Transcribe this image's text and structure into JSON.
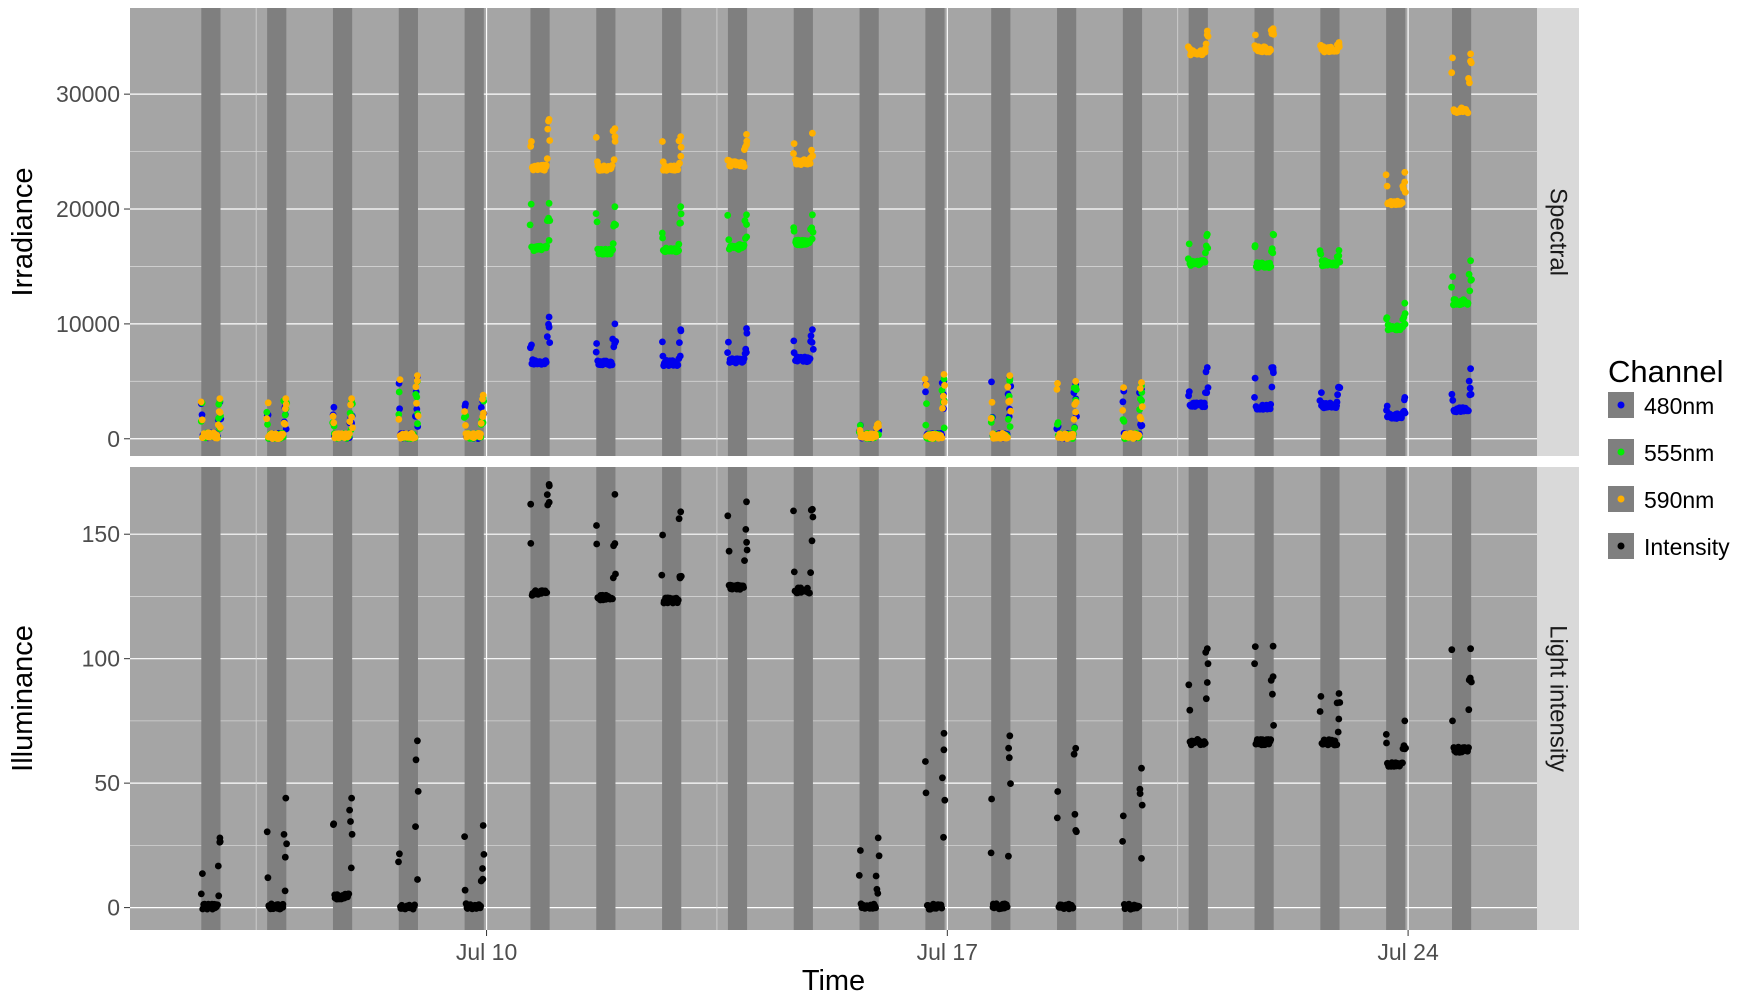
{
  "chart_data": {
    "type": "scatter",
    "xlabel": "Time",
    "x_tick_labels": [
      "Jul 10",
      "Jul 17",
      "Jul 24"
    ],
    "x_tick_dates": [
      "2023-07-10",
      "2023-07-17",
      "2023-07-24"
    ],
    "x_range": [
      "2023-07-04 14:00",
      "2023-07-25 23:00"
    ],
    "dark_periods": [
      [
        "2023-07-05 16:00",
        "2023-07-05 23:00"
      ],
      [
        "2023-07-06 16:00",
        "2023-07-06 23:00"
      ],
      [
        "2023-07-07 16:00",
        "2023-07-07 23:00"
      ],
      [
        "2023-07-08 16:00",
        "2023-07-08 23:00"
      ],
      [
        "2023-07-09 16:00",
        "2023-07-09 23:00"
      ],
      [
        "2023-07-10 16:00",
        "2023-07-10 23:00"
      ],
      [
        "2023-07-11 16:00",
        "2023-07-11 23:00"
      ],
      [
        "2023-07-12 16:00",
        "2023-07-12 23:00"
      ],
      [
        "2023-07-13 16:00",
        "2023-07-13 23:00"
      ],
      [
        "2023-07-14 16:00",
        "2023-07-14 23:00"
      ],
      [
        "2023-07-15 16:00",
        "2023-07-15 23:00"
      ],
      [
        "2023-07-16 16:00",
        "2023-07-16 23:00"
      ],
      [
        "2023-07-17 16:00",
        "2023-07-17 23:00"
      ],
      [
        "2023-07-18 16:00",
        "2023-07-18 23:00"
      ],
      [
        "2023-07-19 16:00",
        "2023-07-19 23:00"
      ],
      [
        "2023-07-20 16:00",
        "2023-07-20 23:00"
      ],
      [
        "2023-07-21 16:00",
        "2023-07-21 23:00"
      ],
      [
        "2023-07-22 16:00",
        "2023-07-22 23:00"
      ],
      [
        "2023-07-23 16:00",
        "2023-07-23 23:00"
      ],
      [
        "2023-07-24 16:00",
        "2023-07-24 23:00"
      ]
    ],
    "legend": {
      "title": "Channel",
      "placement": "right",
      "entries": [
        {
          "label": "480nm",
          "color": "#0000ee"
        },
        {
          "label": "555nm",
          "color": "#00ee00"
        },
        {
          "label": "590nm",
          "color": "#ffb000"
        },
        {
          "label": "Intensity",
          "color": "#000000"
        }
      ]
    },
    "facets": [
      {
        "strip_label": "Spectral",
        "ylabel": "Irradiance",
        "ylim": [
          -1500,
          37500
        ],
        "y_ticks": [
          0,
          10000,
          20000,
          30000
        ],
        "grid": true,
        "series": [
          {
            "name": "480nm",
            "color": "#0000ee",
            "daily": [
              {
                "day": "2023-07-05",
                "base": 200,
                "peak": 3200
              },
              {
                "day": "2023-07-06",
                "base": 150,
                "peak": 3000
              },
              {
                "day": "2023-07-07",
                "base": 150,
                "peak": 3000
              },
              {
                "day": "2023-07-08",
                "base": 150,
                "peak": 5400
              },
              {
                "day": "2023-07-09",
                "base": 150,
                "peak": 3500
              },
              {
                "day": "2023-07-10",
                "base": 6600,
                "peak": 10600
              },
              {
                "day": "2023-07-11",
                "base": 6500,
                "peak": 10000
              },
              {
                "day": "2023-07-12",
                "base": 6500,
                "peak": 9500
              },
              {
                "day": "2023-07-13",
                "base": 6700,
                "peak": 9600
              },
              {
                "day": "2023-07-14",
                "base": 6800,
                "peak": 9500
              },
              {
                "day": "2023-07-15",
                "base": 150,
                "peak": 1300
              },
              {
                "day": "2023-07-16",
                "base": 150,
                "peak": 5000
              },
              {
                "day": "2023-07-17",
                "base": 150,
                "peak": 5300
              },
              {
                "day": "2023-07-18",
                "base": 150,
                "peak": 4700
              },
              {
                "day": "2023-07-19",
                "base": 150,
                "peak": 4300
              },
              {
                "day": "2023-07-20",
                "base": 2800,
                "peak": 6200
              },
              {
                "day": "2023-07-21",
                "base": 2700,
                "peak": 6200
              },
              {
                "day": "2023-07-22",
                "base": 2800,
                "peak": 4500
              },
              {
                "day": "2023-07-23",
                "base": 1900,
                "peak": 3600
              },
              {
                "day": "2023-07-24",
                "base": 2400,
                "peak": 6100
              }
            ]
          },
          {
            "name": "555nm",
            "color": "#00ee00",
            "daily": [
              {
                "day": "2023-07-05",
                "base": 200,
                "peak": 3300
              },
              {
                "day": "2023-07-06",
                "base": 150,
                "peak": 3300
              },
              {
                "day": "2023-07-07",
                "base": 150,
                "peak": 3300
              },
              {
                "day": "2023-07-08",
                "base": 150,
                "peak": 5000
              },
              {
                "day": "2023-07-09",
                "base": 150,
                "peak": 3600
              },
              {
                "day": "2023-07-10",
                "base": 16500,
                "peak": 20500
              },
              {
                "day": "2023-07-11",
                "base": 16200,
                "peak": 20200
              },
              {
                "day": "2023-07-12",
                "base": 16300,
                "peak": 20200
              },
              {
                "day": "2023-07-13",
                "base": 16600,
                "peak": 19500
              },
              {
                "day": "2023-07-14",
                "base": 17000,
                "peak": 19500
              },
              {
                "day": "2023-07-15",
                "base": 150,
                "peak": 1300
              },
              {
                "day": "2023-07-16",
                "base": 150,
                "peak": 5200
              },
              {
                "day": "2023-07-17",
                "base": 150,
                "peak": 5200
              },
              {
                "day": "2023-07-18",
                "base": 150,
                "peak": 4500
              },
              {
                "day": "2023-07-19",
                "base": 150,
                "peak": 4600
              },
              {
                "day": "2023-07-20",
                "base": 15200,
                "peak": 17800
              },
              {
                "day": "2023-07-21",
                "base": 15000,
                "peak": 17800
              },
              {
                "day": "2023-07-22",
                "base": 15200,
                "peak": 16400
              },
              {
                "day": "2023-07-23",
                "base": 9600,
                "peak": 11800
              },
              {
                "day": "2023-07-24",
                "base": 11800,
                "peak": 15500
              }
            ]
          },
          {
            "name": "590nm",
            "color": "#ffb000",
            "daily": [
              {
                "day": "2023-07-05",
                "base": 200,
                "peak": 3500
              },
              {
                "day": "2023-07-06",
                "base": 150,
                "peak": 3500
              },
              {
                "day": "2023-07-07",
                "base": 150,
                "peak": 3500
              },
              {
                "day": "2023-07-08",
                "base": 150,
                "peak": 5500
              },
              {
                "day": "2023-07-09",
                "base": 150,
                "peak": 3800
              },
              {
                "day": "2023-07-10",
                "base": 23500,
                "peak": 27800
              },
              {
                "day": "2023-07-11",
                "base": 23500,
                "peak": 27000
              },
              {
                "day": "2023-07-12",
                "base": 23500,
                "peak": 26300
              },
              {
                "day": "2023-07-13",
                "base": 23800,
                "peak": 26500
              },
              {
                "day": "2023-07-14",
                "base": 24000,
                "peak": 26600
              },
              {
                "day": "2023-07-15",
                "base": 150,
                "peak": 1300
              },
              {
                "day": "2023-07-16",
                "base": 150,
                "peak": 5600
              },
              {
                "day": "2023-07-17",
                "base": 150,
                "peak": 5500
              },
              {
                "day": "2023-07-18",
                "base": 150,
                "peak": 5000
              },
              {
                "day": "2023-07-19",
                "base": 150,
                "peak": 4900
              },
              {
                "day": "2023-07-20",
                "base": 33500,
                "peak": 35500
              },
              {
                "day": "2023-07-21",
                "base": 33800,
                "peak": 35700
              },
              {
                "day": "2023-07-22",
                "base": 33800,
                "peak": 34500
              },
              {
                "day": "2023-07-23",
                "base": 20500,
                "peak": 23200
              },
              {
                "day": "2023-07-24",
                "base": 28500,
                "peak": 33500
              }
            ]
          }
        ]
      },
      {
        "strip_label": "Light intensity",
        "ylabel": "Illuminance",
        "ylim": [
          -9,
          177
        ],
        "y_ticks": [
          0,
          50,
          100,
          150
        ],
        "grid": true,
        "series": [
          {
            "name": "Intensity",
            "color": "#000000",
            "daily": [
              {
                "day": "2023-07-05",
                "base": 0,
                "peak": 28
              },
              {
                "day": "2023-07-06",
                "base": 0,
                "peak": 44
              },
              {
                "day": "2023-07-07",
                "base": 4,
                "peak": 44
              },
              {
                "day": "2023-07-08",
                "base": 0,
                "peak": 67
              },
              {
                "day": "2023-07-09",
                "base": 0,
                "peak": 33
              },
              {
                "day": "2023-07-10",
                "base": 126,
                "peak": 170
              },
              {
                "day": "2023-07-11",
                "base": 124,
                "peak": 166
              },
              {
                "day": "2023-07-12",
                "base": 123,
                "peak": 159
              },
              {
                "day": "2023-07-13",
                "base": 128,
                "peak": 163
              },
              {
                "day": "2023-07-14",
                "base": 127,
                "peak": 160
              },
              {
                "day": "2023-07-15",
                "base": 0,
                "peak": 28
              },
              {
                "day": "2023-07-16",
                "base": 0,
                "peak": 70
              },
              {
                "day": "2023-07-17",
                "base": 0,
                "peak": 69
              },
              {
                "day": "2023-07-18",
                "base": 0,
                "peak": 64
              },
              {
                "day": "2023-07-19",
                "base": 0,
                "peak": 56
              },
              {
                "day": "2023-07-20",
                "base": 66,
                "peak": 104
              },
              {
                "day": "2023-07-21",
                "base": 66,
                "peak": 105
              },
              {
                "day": "2023-07-22",
                "base": 66,
                "peak": 86
              },
              {
                "day": "2023-07-23",
                "base": 57,
                "peak": 75
              },
              {
                "day": "2023-07-24",
                "base": 63,
                "peak": 104
              }
            ]
          }
        ]
      }
    ]
  }
}
